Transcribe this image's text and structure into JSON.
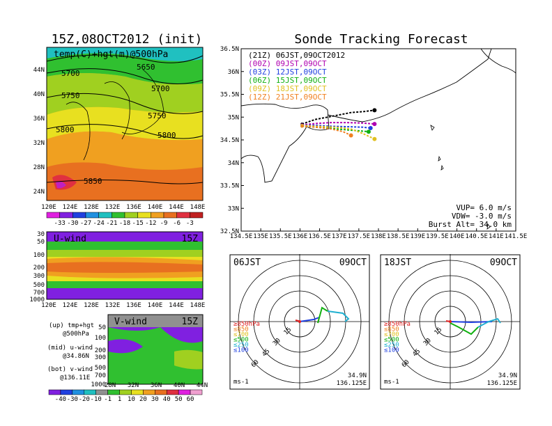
{
  "left_title": "15Z,08OCT2012 (init)",
  "right_title": "Sonde Tracking Forecast",
  "map500": {
    "label": "temp(C)+hgt(m)@500hPa",
    "lat_ticks": [
      "44N",
      "40N",
      "36N",
      "32N",
      "28N",
      "24N"
    ],
    "lon_ticks": [
      "120E",
      "124E",
      "128E",
      "132E",
      "136E",
      "140E",
      "144E",
      "148E"
    ],
    "contours": [
      "5650",
      "5700",
      "5700",
      "5750",
      "5750",
      "5800",
      "5800",
      "5850"
    ],
    "colorbar": [
      "-33",
      "-30",
      "-27",
      "-24",
      "-21",
      "-18",
      "-15",
      "-12",
      "-9",
      "-6",
      "-3"
    ]
  },
  "uwind": {
    "label": "U-wind",
    "time": "15Z",
    "p_ticks": [
      "30",
      "50",
      "100",
      "200",
      "300",
      "500",
      "700",
      "1000"
    ],
    "lon_ticks": [
      "120E",
      "124E",
      "128E",
      "132E",
      "136E",
      "140E",
      "144E",
      "148E"
    ]
  },
  "vwind": {
    "label": "V-wind",
    "time": "15Z",
    "p_ticks": [
      "50",
      "100",
      "200",
      "300",
      "500",
      "700",
      "1000"
    ],
    "lat_ticks": [
      "28N",
      "32N",
      "36N",
      "40N",
      "44N"
    ]
  },
  "wind_colorbar": [
    "-40",
    "-30",
    "-20",
    "-10",
    "-1",
    "1",
    "10",
    "20",
    "30",
    "40",
    "50",
    "60"
  ],
  "notes": [
    {
      "a": "(up) tmp+hgt",
      "b": "@500hPa"
    },
    {
      "a": "(mid) u-wind",
      "b": "@34.86N"
    },
    {
      "a": "(bot) v-wind",
      "b": "@136.11E"
    }
  ],
  "tracking": {
    "legend": [
      {
        "text": "(21Z) 06JST,09OCT2012",
        "color": "#000000"
      },
      {
        "text": "(00Z) 09JST,09OCT",
        "color": "#b000b0"
      },
      {
        "text": "(03Z) 12JST,09OCT",
        "color": "#2040e0"
      },
      {
        "text": "(06Z) 15JST,09OCT",
        "color": "#10b010"
      },
      {
        "text": "(09Z) 18JST,09OCT",
        "color": "#e0c020"
      },
      {
        "text": "(12Z) 21JST,09OCT",
        "color": "#f08020"
      }
    ],
    "lat_ticks": [
      "36.5N",
      "36N",
      "35.5N",
      "35N",
      "34.5N",
      "34N",
      "33.5N",
      "33N",
      "32.5N"
    ],
    "lon_ticks": [
      "134.5E",
      "135E",
      "135.5E",
      "136E",
      "136.5E",
      "137E",
      "137.5E",
      "138E",
      "138.5E",
      "139E",
      "139.5E",
      "140E",
      "140.5E",
      "141E",
      "141.5E"
    ],
    "params": [
      "VUP= 6.0 m/s",
      "VDW= -3.0 m/s",
      "Burst Alt= 34.0 km"
    ],
    "xlim": [
      134.5,
      141.5
    ],
    "ylim": [
      32.5,
      36.5
    ]
  },
  "hodo1": {
    "left": "06JST",
    "right": "09OCT",
    "ring_labels": [
      "15",
      "30",
      "45",
      "60"
    ],
    "unit": "ms-1",
    "lat": "34.9N",
    "lon": "136.125E"
  },
  "hodo2": {
    "left": "18JST",
    "right": "09OCT",
    "ring_labels": [
      "15",
      "30",
      "45",
      "60"
    ],
    "unit": "ms-1",
    "lat": "34.9N",
    "lon": "136.125E"
  },
  "hodo_legend": [
    {
      "text": "≥850hPa",
      "color": "#e02020"
    },
    {
      "text": "≤850",
      "color": "#f08020"
    },
    {
      "text": "≤700",
      "color": "#e0c020"
    },
    {
      "text": "≤500",
      "color": "#10b010"
    },
    {
      "text": "≤250",
      "color": "#20b0d0"
    },
    {
      "text": "≤100",
      "color": "#2040e0"
    }
  ],
  "chart_data": {
    "type": "line",
    "title": "Sonde Tracking Forecast",
    "xlabel": "",
    "ylabel": "",
    "xlim": [
      134.5,
      141.5
    ],
    "ylim": [
      32.5,
      36.5
    ],
    "series": [
      {
        "name": "(21Z) 06JST,09OCT2012",
        "color": "#000000",
        "x": [
          136.05,
          136.4,
          136.7,
          137.0,
          137.3,
          137.6,
          137.9
        ],
        "y": [
          34.85,
          34.95,
          35.0,
          35.05,
          35.1,
          35.12,
          35.15
        ]
      },
      {
        "name": "(00Z) 09JST,09OCT",
        "color": "#b000b0",
        "x": [
          136.05,
          136.4,
          136.8,
          137.2,
          137.6,
          137.9
        ],
        "y": [
          34.83,
          34.86,
          34.88,
          34.88,
          34.87,
          34.85
        ]
      },
      {
        "name": "(03Z) 12JST,09OCT",
        "color": "#2040e0",
        "x": [
          136.05,
          136.4,
          136.8,
          137.2,
          137.6,
          137.8
        ],
        "y": [
          34.82,
          34.82,
          34.8,
          34.79,
          34.78,
          34.76
        ]
      },
      {
        "name": "(06Z) 15JST,09OCT",
        "color": "#10b010",
        "x": [
          136.05,
          136.4,
          136.8,
          137.2,
          137.5,
          137.75
        ],
        "y": [
          34.8,
          34.78,
          34.75,
          34.72,
          34.7,
          34.68
        ]
      },
      {
        "name": "(09Z) 18JST,09OCT",
        "color": "#e0c020",
        "x": [
          136.05,
          136.4,
          136.9,
          137.3,
          137.6,
          137.9
        ],
        "y": [
          34.82,
          34.8,
          34.78,
          34.74,
          34.64,
          34.52
        ]
      },
      {
        "name": "(12Z) 21JST,09OCT",
        "color": "#f08020",
        "x": [
          136.05,
          136.4,
          136.8,
          137.1,
          137.3
        ],
        "y": [
          34.8,
          34.78,
          34.74,
          34.68,
          34.6
        ]
      }
    ]
  }
}
